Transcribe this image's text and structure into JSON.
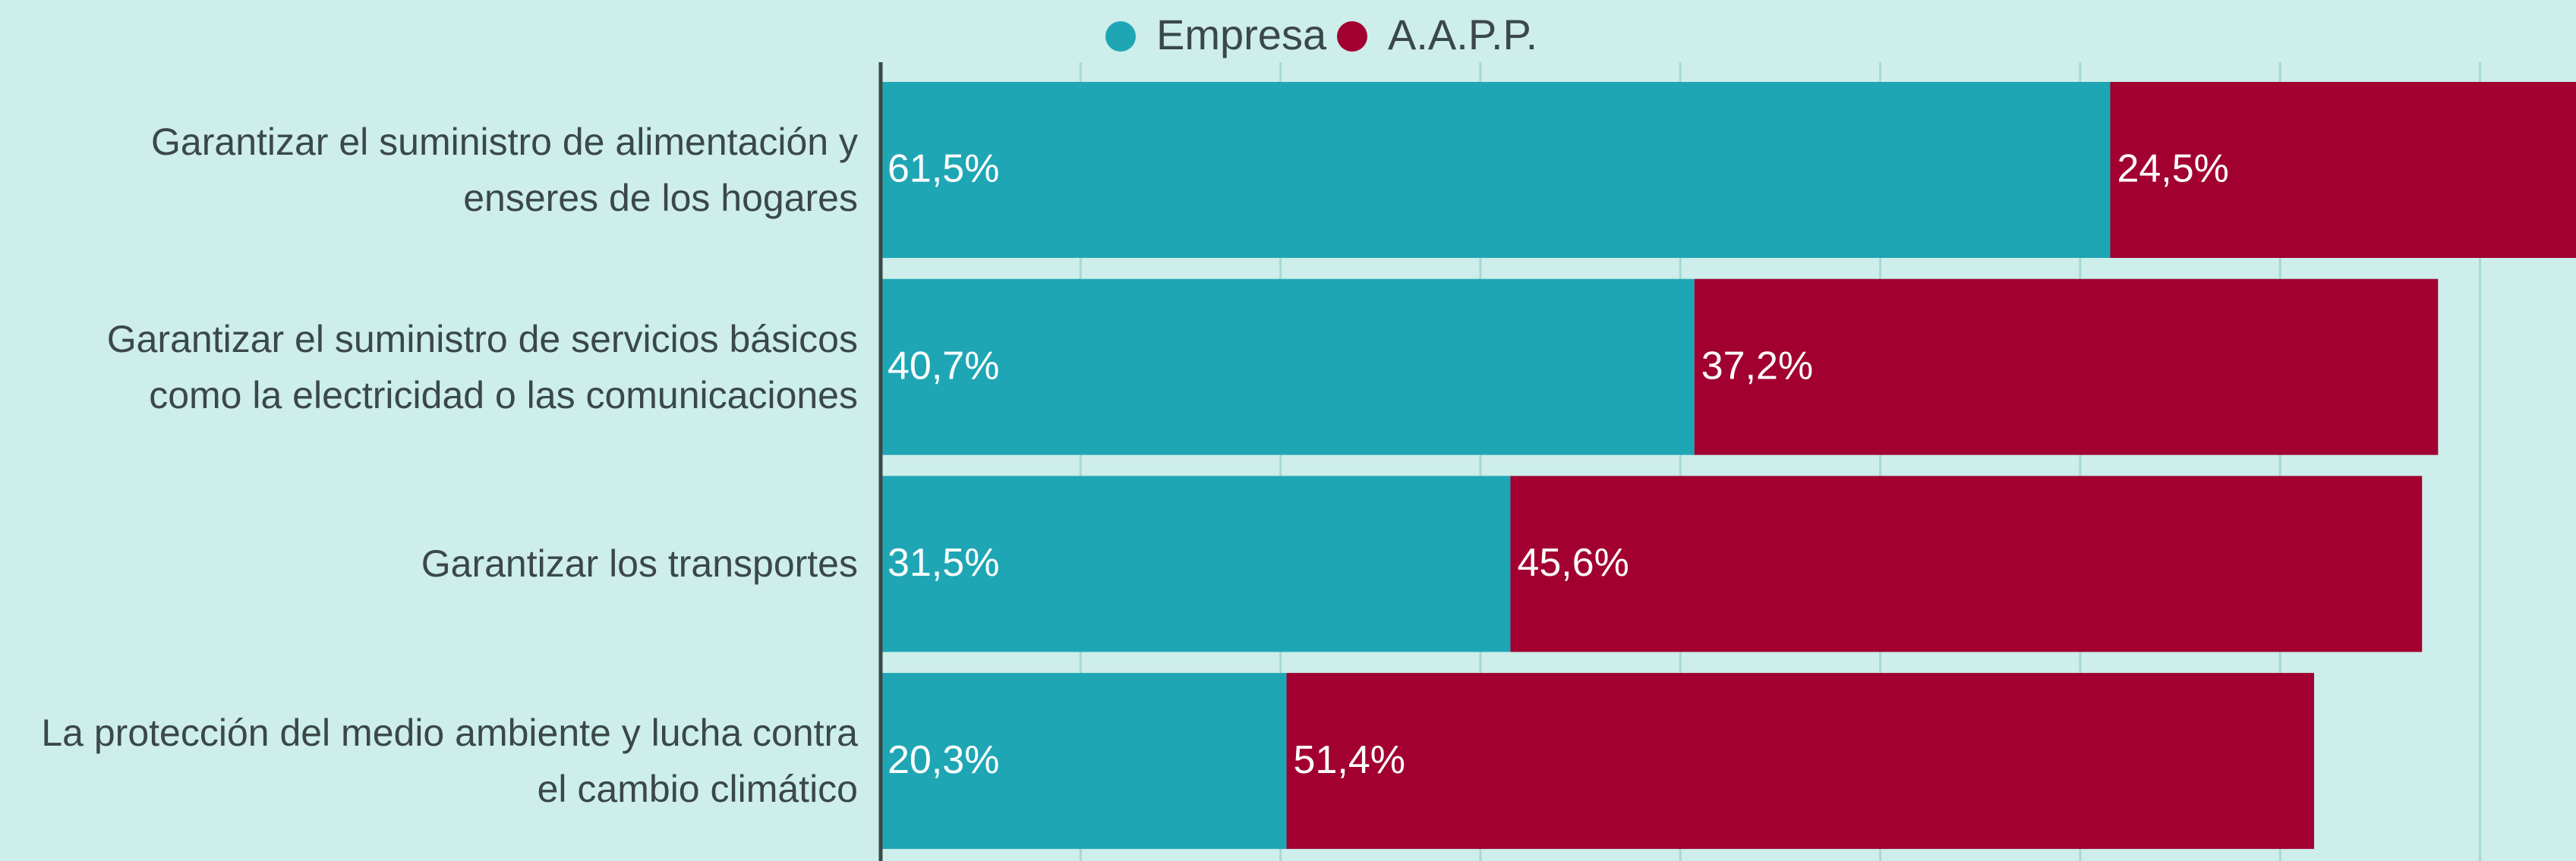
{
  "chart_data": {
    "type": "stacked-barh",
    "categories": [
      "Garantizar el suministro de alimentación y enseres de los hogares",
      "Garantizar el suministro de servicios básicos como la electricidad o las comunicaciones",
      "Garantizar los transportes",
      "La protección del medio ambiente y lucha contra el cambio climático"
    ],
    "series": [
      {
        "name": "Empresa",
        "color": "#1fa6b5",
        "values": [
          61.5,
          40.7,
          31.5,
          20.3
        ],
        "value_labels": [
          "61,5%",
          "40,7%",
          "31,5%",
          "20,3%"
        ]
      },
      {
        "name": "A.A.P.P.",
        "color": "#a10030",
        "values": [
          24.5,
          37.2,
          45.6,
          51.4
        ],
        "value_labels": [
          "24,5%",
          "37,2%",
          "45,6%",
          "51,4%"
        ]
      }
    ],
    "xlim": [
      0,
      84.8
    ],
    "xticks": [
      0,
      10,
      20,
      30,
      40,
      50,
      60,
      70,
      80
    ],
    "grid": true,
    "legend": "top"
  }
}
